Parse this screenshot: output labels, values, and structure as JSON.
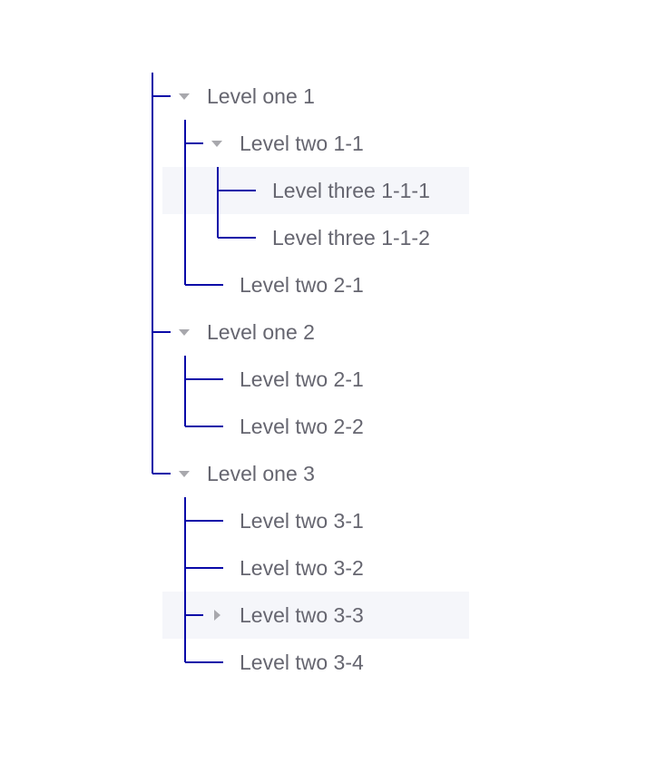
{
  "tree": {
    "line_color": "#0a0aa8",
    "highlight_color": "#f5f6fa",
    "nodes": [
      {
        "label": "Level one 1",
        "level": 1,
        "caret": "down",
        "highlighted": false
      },
      {
        "label": "Level two 1-1",
        "level": 2,
        "caret": "down",
        "highlighted": false
      },
      {
        "label": "Level three 1-1-1",
        "level": 3,
        "caret": null,
        "highlighted": true
      },
      {
        "label": "Level three 1-1-2",
        "level": 3,
        "caret": null,
        "highlighted": false
      },
      {
        "label": "Level two 2-1",
        "level": 2,
        "caret": null,
        "highlighted": false
      },
      {
        "label": "Level one 2",
        "level": 1,
        "caret": "down",
        "highlighted": false
      },
      {
        "label": "Level two 2-1",
        "level": 2,
        "caret": null,
        "highlighted": false
      },
      {
        "label": "Level two 2-2",
        "level": 2,
        "caret": null,
        "highlighted": false
      },
      {
        "label": "Level one 3",
        "level": 1,
        "caret": "down",
        "highlighted": false
      },
      {
        "label": "Level two 3-1",
        "level": 2,
        "caret": null,
        "highlighted": false
      },
      {
        "label": "Level two 3-2",
        "level": 2,
        "caret": null,
        "highlighted": false
      },
      {
        "label": "Level two 3-3",
        "level": 2,
        "caret": "right",
        "highlighted": true
      },
      {
        "label": "Level two 3-4",
        "level": 2,
        "caret": null,
        "highlighted": false
      }
    ]
  }
}
